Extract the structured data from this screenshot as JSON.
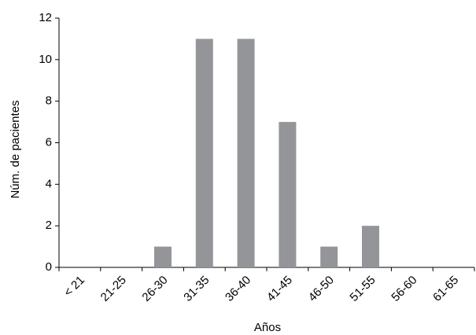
{
  "chart_data": {
    "type": "bar",
    "categories": [
      "< 21",
      "21-25",
      "26-30",
      "31-35",
      "36-40",
      "41-45",
      "46-50",
      "51-55",
      "56-60",
      "61-65"
    ],
    "values": [
      0,
      0,
      1,
      11,
      11,
      7,
      1,
      2,
      0,
      0
    ],
    "color": "#939598",
    "ylim": [
      0,
      12
    ],
    "yticks": [
      0,
      2,
      4,
      6,
      8,
      10,
      12
    ],
    "x_label": "Años",
    "y_label": "Núm. de pacientes",
    "grid": false
  }
}
